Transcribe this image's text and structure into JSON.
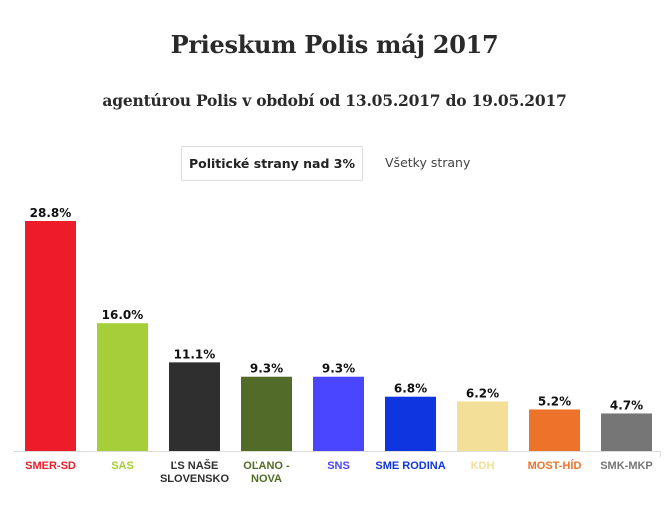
{
  "header": {
    "title": "Prieskum Polis máj 2017",
    "subtitle": "agentúrou Polis v období od 13.05.2017 do 19.05.2017"
  },
  "tabs": [
    {
      "label": "Politické strany nad 3%",
      "active": true
    },
    {
      "label": "Všetky strany",
      "active": false
    }
  ],
  "chart_data": {
    "type": "bar",
    "title": "Prieskum Polis máj 2017",
    "subtitle": "agentúrou Polis v období od 13.05.2017 do 19.05.2017",
    "xlabel": "",
    "ylabel": "",
    "ylim": [
      0,
      28.8
    ],
    "grid": false,
    "legend": "none",
    "unit": "%",
    "categories": [
      [
        "SMER-SD"
      ],
      [
        "SAS"
      ],
      [
        "ĽS NAŠE",
        "SLOVENSKO"
      ],
      [
        "OĽANO -",
        "NOVA"
      ],
      [
        "SNS"
      ],
      [
        "SME RODINA"
      ],
      [
        "KDH"
      ],
      [
        "MOST-HÍD"
      ],
      [
        "SMK-MKP"
      ]
    ],
    "values": [
      28.8,
      16.0,
      11.1,
      9.3,
      9.3,
      6.8,
      6.2,
      5.2,
      4.7
    ],
    "value_labels": [
      "28.8%",
      "16.0%",
      "11.1%",
      "9.3%",
      "9.3%",
      "6.8%",
      "6.2%",
      "5.2%",
      "4.7%"
    ],
    "colors": [
      "#ed1c2a",
      "#a6ce39",
      "#2f2f2f",
      "#526b28",
      "#4a45ff",
      "#0f35e0",
      "#f3df98",
      "#ed732a",
      "#767676"
    ],
    "label_colors": [
      "#ed1c2a",
      "#a6ce39",
      "#2f2f2f",
      "#526b28",
      "#4a45ff",
      "#0f35e0",
      "#f3df98",
      "#ed732a",
      "#767676"
    ]
  }
}
